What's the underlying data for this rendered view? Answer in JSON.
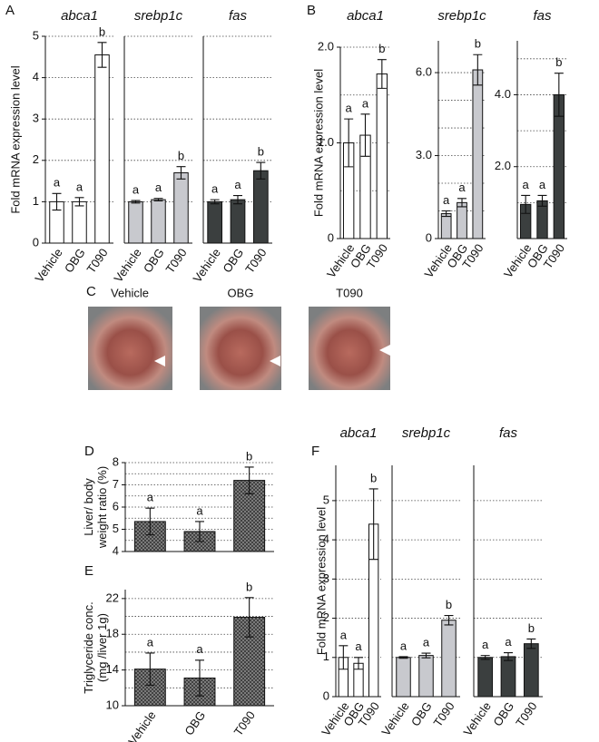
{
  "chart_data": [
    {
      "type": "bar",
      "panel": "A",
      "title": "abca1",
      "ylabel": [
        "Fold mRNA expression level"
      ],
      "categories": [
        "Vehicle",
        "OBG",
        "T090"
      ],
      "values": [
        1.0,
        1.0,
        4.55
      ],
      "errors": [
        0.2,
        0.1,
        0.3
      ],
      "annotations": [
        "a",
        "a",
        "b"
      ],
      "colors": [
        "#ffffff",
        "#ffffff",
        "#ffffff"
      ],
      "ylim": [
        0,
        5
      ],
      "yticks": [
        0,
        1,
        2,
        3,
        4,
        5
      ],
      "ygrid": [
        1,
        2,
        3,
        4,
        5
      ]
    },
    {
      "type": "bar",
      "title": "srebp1c",
      "categories": [
        "Vehicle",
        "OBG",
        "T090"
      ],
      "values": [
        1.0,
        1.05,
        1.7
      ],
      "errors": [
        0.03,
        0.03,
        0.15
      ],
      "annotations": [
        "a",
        "a",
        "b"
      ],
      "colors": [
        "#c8c9ce",
        "#c8c9ce",
        "#c8c9ce"
      ],
      "ylim": [
        0,
        5
      ],
      "ygrid": [
        1,
        2,
        3,
        4,
        5
      ]
    },
    {
      "type": "bar",
      "title": "fas",
      "categories": [
        "Vehicle",
        "OBG",
        "T090"
      ],
      "values": [
        1.0,
        1.05,
        1.75
      ],
      "errors": [
        0.05,
        0.1,
        0.2
      ],
      "annotations": [
        "a",
        "a",
        "b"
      ],
      "colors": [
        "#3b3f3f",
        "#3b3f3f",
        "#3b3f3f"
      ],
      "ylim": [
        0,
        5
      ],
      "ygrid": [
        1,
        2,
        3,
        4,
        5
      ]
    },
    {
      "type": "bar",
      "panel": "B",
      "title": "abca1",
      "ylabel": [
        "Fold mRNA expression level"
      ],
      "categories": [
        "Vehicle",
        "OBG",
        "T090"
      ],
      "values": [
        1.0,
        1.08,
        1.72
      ],
      "errors": [
        0.25,
        0.22,
        0.15
      ],
      "annotations": [
        "a",
        "a",
        "b"
      ],
      "colors": [
        "#ffffff",
        "#ffffff",
        "#ffffff"
      ],
      "ylim": [
        0,
        2.0
      ],
      "yticks": [
        0,
        {
          "value": 1,
          "label": "1.0"
        },
        {
          "value": 2,
          "label": "2.0"
        }
      ],
      "ygrid": [
        0.5,
        1,
        1.5,
        2
      ]
    },
    {
      "type": "bar",
      "title": "srebp1c",
      "categories": [
        "Vehicle",
        "OBG",
        "T090"
      ],
      "values": [
        0.9,
        1.3,
        6.1
      ],
      "errors": [
        0.1,
        0.15,
        0.55
      ],
      "annotations": [
        "a",
        "a",
        "b"
      ],
      "colors": [
        "#c8c9ce",
        "#c8c9ce",
        "#c8c9ce"
      ],
      "ylim": [
        0,
        7.15
      ],
      "yticks": [
        0,
        {
          "value": 3,
          "label": "3.0"
        },
        {
          "value": 6,
          "label": "6.0"
        }
      ],
      "ygrid": [
        1,
        2,
        3,
        4,
        5,
        6
      ]
    },
    {
      "type": "bar",
      "title": "fas",
      "categories": [
        "Vehicle",
        "OBG",
        "T090"
      ],
      "values": [
        0.95,
        1.05,
        4.0
      ],
      "errors": [
        0.25,
        0.15,
        0.6
      ],
      "annotations": [
        "a",
        "a",
        "b"
      ],
      "colors": [
        "#3b3f3f",
        "#3b3f3f",
        "#3b3f3f"
      ],
      "ylim": [
        0,
        5.5
      ],
      "yticks": [
        {
          "value": 2,
          "label": "2.0"
        },
        {
          "value": 4,
          "label": "4.0"
        }
      ],
      "ygrid": [
        1,
        2,
        3,
        4,
        5
      ]
    },
    {
      "type": "bar",
      "panel": "D",
      "ylabel": [
        "Liver/ body",
        "weight ratio (%)"
      ],
      "values": [
        5.35,
        4.9,
        7.2
      ],
      "errors": [
        0.6,
        0.45,
        0.6
      ],
      "annotations": [
        "a",
        "a",
        "b"
      ],
      "colors": [
        "#8a8a8a",
        "#8a8a8a",
        "#8a8a8a"
      ],
      "fill_pattern": "crosshatch",
      "ylim": [
        4,
        8
      ],
      "yticks": [
        4,
        5,
        6,
        7,
        8
      ],
      "ygrid": [
        4.5,
        5,
        5.5,
        6,
        6.5,
        7,
        7.5,
        8
      ]
    },
    {
      "type": "bar",
      "panel": "E",
      "ylabel": [
        "Triglyceride conc.",
        "(mg /liver 1g)"
      ],
      "categories": [
        "Vehicle",
        "OBG",
        "T090"
      ],
      "values": [
        14.1,
        13.1,
        19.9
      ],
      "errors": [
        1.8,
        2.0,
        2.2
      ],
      "annotations": [
        "a",
        "a",
        "b"
      ],
      "colors": [
        "#8a8a8a",
        "#8a8a8a",
        "#8a8a8a"
      ],
      "fill_pattern": "crosshatch",
      "ylim": [
        10,
        23
      ],
      "yticks": [
        10,
        14,
        18,
        22
      ],
      "ygrid": [
        12,
        14,
        16,
        18,
        20,
        22
      ]
    },
    {
      "type": "bar",
      "panel": "F",
      "title": "abca1",
      "ylabel": [
        "Fold mRNA expression level"
      ],
      "categories": [
        "Vehicle",
        "OBG",
        "T090"
      ],
      "values": [
        1.0,
        0.85,
        4.4
      ],
      "errors": [
        0.3,
        0.15,
        0.9
      ],
      "annotations": [
        "a",
        "a",
        "b"
      ],
      "colors": [
        "#ffffff",
        "#ffffff",
        "#ffffff"
      ],
      "ylim": [
        0,
        5.9
      ],
      "yticks": [
        0,
        1,
        2,
        3,
        4,
        5
      ],
      "ygrid": [
        1,
        2,
        3,
        4,
        5
      ]
    },
    {
      "type": "bar",
      "title": "srebp1c",
      "categories": [
        "Vehicle",
        "OBG",
        "T090"
      ],
      "values": [
        1.0,
        1.05,
        1.95
      ],
      "errors": [
        0.02,
        0.06,
        0.12
      ],
      "annotations": [
        "a",
        "a",
        "b"
      ],
      "colors": [
        "#c8c9ce",
        "#c8c9ce",
        "#c8c9ce"
      ],
      "ylim": [
        0,
        5.9
      ],
      "ygrid": [
        1,
        2,
        3,
        4,
        5
      ]
    },
    {
      "type": "bar",
      "title": "fas",
      "categories": [
        "Vehicle",
        "OBG",
        "T090"
      ],
      "values": [
        1.0,
        1.02,
        1.35
      ],
      "errors": [
        0.05,
        0.1,
        0.12
      ],
      "annotations": [
        "a",
        "a",
        "b"
      ],
      "colors": [
        "#3b3f3f",
        "#3b3f3f",
        "#3b3f3f"
      ],
      "ylim": [
        0,
        5.9
      ],
      "ygrid": [
        1,
        2,
        3,
        4,
        5
      ]
    }
  ],
  "photos": {
    "panel": "C",
    "labels": [
      "Vehicle",
      "OBG",
      "T090"
    ]
  }
}
